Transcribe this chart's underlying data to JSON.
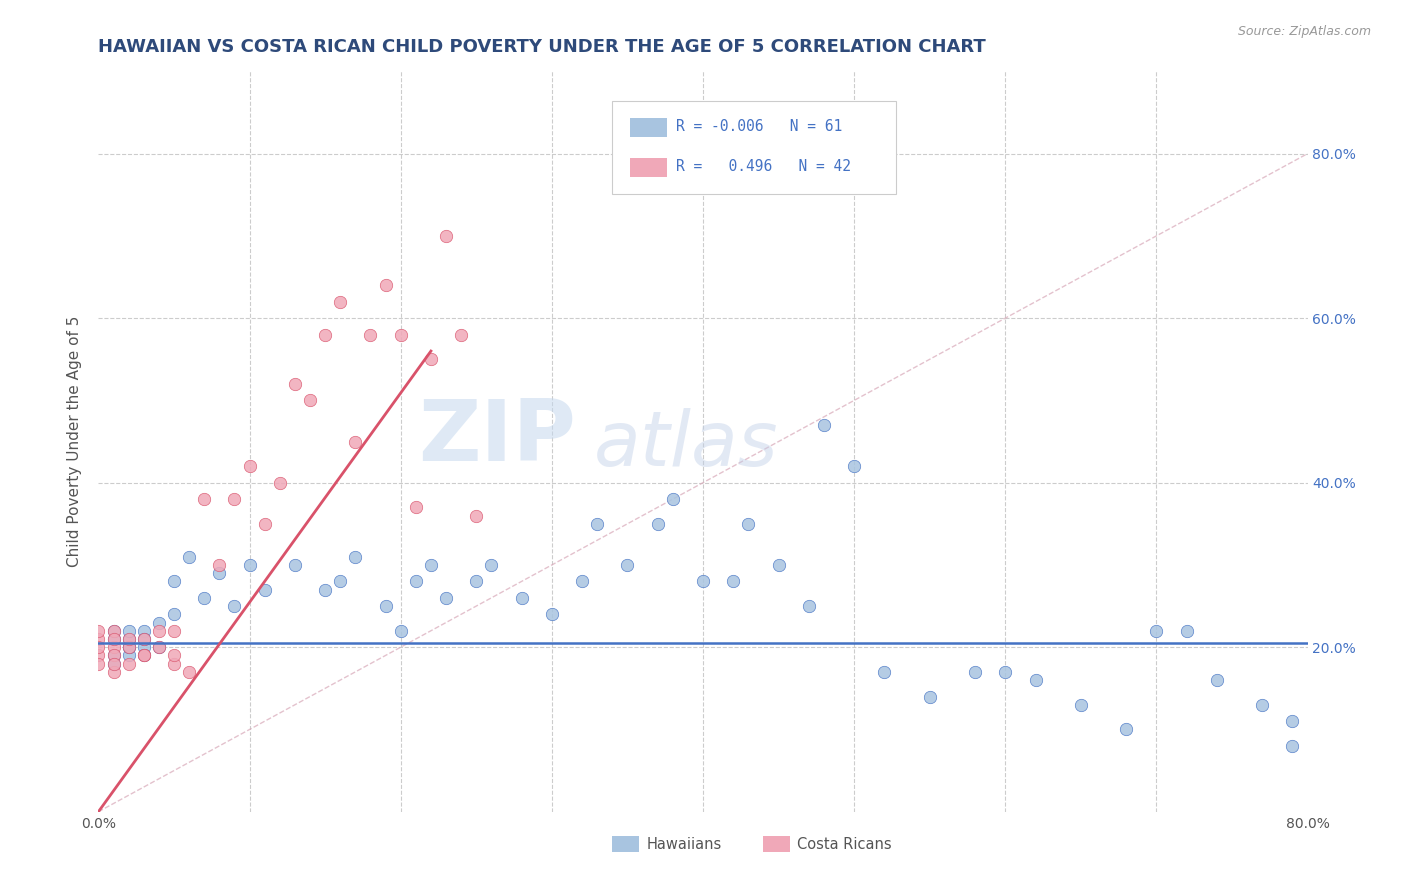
{
  "title": "HAWAIIAN VS COSTA RICAN CHILD POVERTY UNDER THE AGE OF 5 CORRELATION CHART",
  "source": "Source: ZipAtlas.com",
  "ylabel": "Child Poverty Under the Age of 5",
  "xlim": [
    0.0,
    0.8
  ],
  "ylim": [
    0.0,
    0.9
  ],
  "legend_r_hawaiian": "-0.006",
  "legend_n_hawaiian": "61",
  "legend_r_costarican": "0.496",
  "legend_n_costarican": "42",
  "hawaiian_color": "#a8c4e0",
  "costarican_color": "#f0a8b8",
  "hawaiian_trend_color": "#4472c4",
  "costarican_trend_color": "#d9526a",
  "diagonal_color": "#cccccc",
  "watermark_zip": "ZIP",
  "watermark_atlas": "atlas",
  "background_color": "#ffffff",
  "grid_color": "#cccccc",
  "title_color": "#2e4a7a",
  "axis_label_color": "#555555",
  "right_tick_color": "#4472c4",
  "hawaiian_x": [
    0.01,
    0.01,
    0.01,
    0.01,
    0.02,
    0.02,
    0.02,
    0.02,
    0.02,
    0.03,
    0.03,
    0.03,
    0.03,
    0.04,
    0.04,
    0.05,
    0.05,
    0.06,
    0.07,
    0.08,
    0.09,
    0.1,
    0.11,
    0.13,
    0.15,
    0.16,
    0.17,
    0.19,
    0.2,
    0.21,
    0.22,
    0.23,
    0.25,
    0.26,
    0.28,
    0.3,
    0.32,
    0.33,
    0.35,
    0.37,
    0.38,
    0.4,
    0.42,
    0.43,
    0.45,
    0.47,
    0.48,
    0.5,
    0.52,
    0.55,
    0.58,
    0.6,
    0.62,
    0.65,
    0.68,
    0.7,
    0.72,
    0.74,
    0.77,
    0.79,
    0.79
  ],
  "hawaiian_y": [
    0.21,
    0.22,
    0.19,
    0.18,
    0.2,
    0.21,
    0.19,
    0.22,
    0.2,
    0.2,
    0.22,
    0.21,
    0.19,
    0.2,
    0.23,
    0.28,
    0.24,
    0.31,
    0.26,
    0.29,
    0.25,
    0.3,
    0.27,
    0.3,
    0.27,
    0.28,
    0.31,
    0.25,
    0.22,
    0.28,
    0.3,
    0.26,
    0.28,
    0.3,
    0.26,
    0.24,
    0.28,
    0.35,
    0.3,
    0.35,
    0.38,
    0.28,
    0.28,
    0.35,
    0.3,
    0.25,
    0.47,
    0.42,
    0.17,
    0.14,
    0.17,
    0.17,
    0.16,
    0.13,
    0.1,
    0.22,
    0.22,
    0.16,
    0.13,
    0.11,
    0.08
  ],
  "costarican_x": [
    0.0,
    0.0,
    0.0,
    0.0,
    0.0,
    0.01,
    0.01,
    0.01,
    0.01,
    0.01,
    0.01,
    0.02,
    0.02,
    0.02,
    0.03,
    0.03,
    0.03,
    0.04,
    0.04,
    0.05,
    0.05,
    0.05,
    0.06,
    0.07,
    0.08,
    0.09,
    0.1,
    0.11,
    0.12,
    0.13,
    0.14,
    0.15,
    0.16,
    0.17,
    0.18,
    0.19,
    0.2,
    0.21,
    0.22,
    0.23,
    0.24,
    0.25
  ],
  "costarican_y": [
    0.19,
    0.21,
    0.18,
    0.22,
    0.2,
    0.2,
    0.19,
    0.17,
    0.22,
    0.21,
    0.18,
    0.2,
    0.18,
    0.21,
    0.19,
    0.21,
    0.19,
    0.22,
    0.2,
    0.18,
    0.19,
    0.22,
    0.17,
    0.38,
    0.3,
    0.38,
    0.42,
    0.35,
    0.4,
    0.52,
    0.5,
    0.58,
    0.62,
    0.45,
    0.58,
    0.64,
    0.58,
    0.37,
    0.55,
    0.7,
    0.58,
    0.36
  ],
  "haw_trend_x": [
    0.0,
    0.8
  ],
  "haw_trend_y": [
    0.205,
    0.205
  ],
  "cr_trend_x0": 0.0,
  "cr_trend_y0": 0.0,
  "cr_trend_x1": 0.22,
  "cr_trend_y1": 0.56
}
